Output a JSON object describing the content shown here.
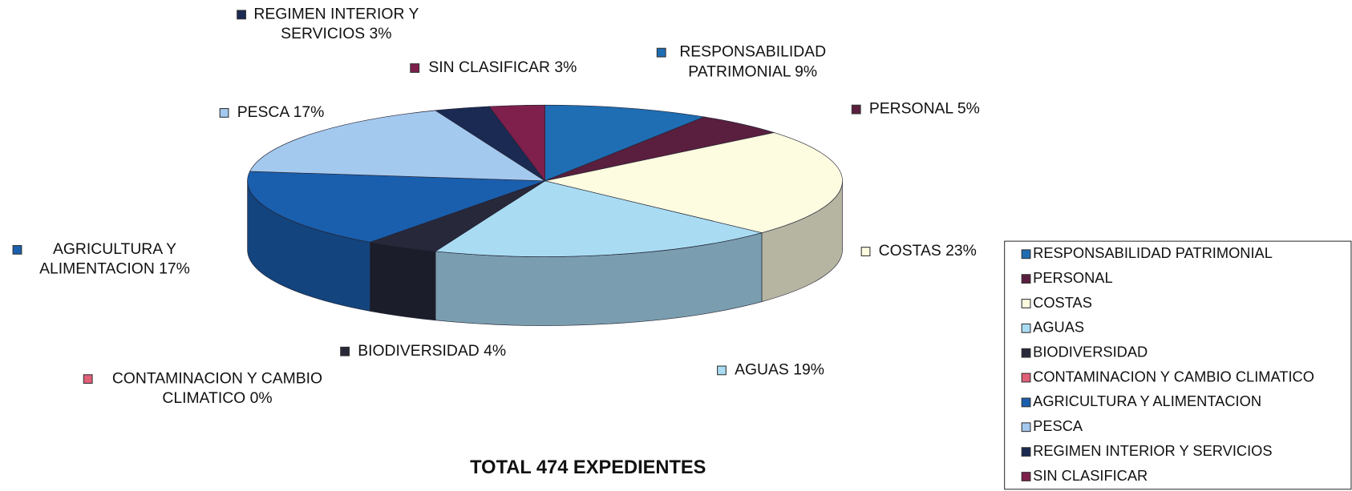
{
  "chart_data": {
    "type": "pie",
    "title": "TOTAL 474 EXPEDIENTES",
    "categories": [
      "RESPONSABILIDAD PATRIMONIAL",
      "PERSONAL",
      "COSTAS",
      "AGUAS",
      "BIODIVERSIDAD",
      "CONTAMINACION Y CAMBIO CLIMATICO",
      "AGRICULTURA Y ALIMENTACION",
      "PESCA",
      "REGIMEN INTERIOR Y SERVICIOS",
      "SIN CLASIFICAR"
    ],
    "values": [
      9,
      5,
      23,
      19,
      4,
      0,
      17,
      17,
      3,
      3
    ],
    "value_labels": [
      [
        "RESPONSABILIDAD",
        "PATRIMONIAL 9%"
      ],
      [
        "PERSONAL 5%"
      ],
      [
        "COSTAS 23%"
      ],
      [
        "AGUAS 19%"
      ],
      [
        "BIODIVERSIDAD 4%"
      ],
      [
        "CONTAMINACION Y CAMBIO",
        "CLIMATICO 0%"
      ],
      [
        "AGRICULTURA Y",
        "ALIMENTACION 17%"
      ],
      [
        "PESCA 17%"
      ],
      [
        "REGIMEN INTERIOR Y",
        "SERVICIOS 3%"
      ],
      [
        "SIN CLASIFICAR 3%"
      ]
    ],
    "colors": [
      "#1f6db3",
      "#5a1f3e",
      "#fdfbe0",
      "#a9dcf3",
      "#27283a",
      "#e06078",
      "#1a5fae",
      "#a4c9ef",
      "#1b2a52",
      "#7e1f4c"
    ],
    "legend": "right"
  }
}
